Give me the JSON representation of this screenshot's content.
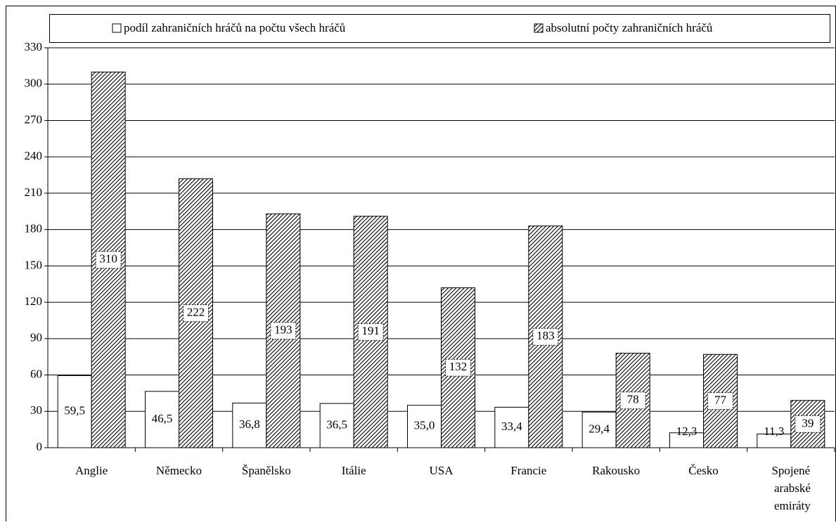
{
  "chart_data": {
    "type": "bar",
    "categories": [
      "Anglie",
      "Německo",
      "Španělsko",
      "Itálie",
      "USA",
      "Francie",
      "Rakousko",
      "Česko",
      "Spojené arabské emiráty"
    ],
    "series": [
      {
        "name": "podíl zahraničních hráčů na  počtu všech hráčů",
        "color": "#ffffff",
        "values": [
          59.5,
          46.5,
          36.8,
          36.5,
          35.0,
          33.4,
          29.4,
          12.3,
          11.3
        ],
        "value_labels": [
          "59,5",
          "46,5",
          "36,8",
          "36,5",
          "35,0",
          "33,4",
          "29,4",
          "12,3",
          "11,3"
        ]
      },
      {
        "name": "absolutní počty zahraničních hráčů",
        "color": "#000000",
        "pattern": "hatch",
        "values": [
          310,
          222,
          193,
          191,
          132,
          183,
          78,
          77,
          39
        ]
      }
    ],
    "ylim": [
      0,
      330
    ],
    "yticks": [
      0,
      30,
      60,
      90,
      120,
      150,
      180,
      210,
      240,
      270,
      300,
      330
    ],
    "grid": true,
    "legend": "top"
  }
}
